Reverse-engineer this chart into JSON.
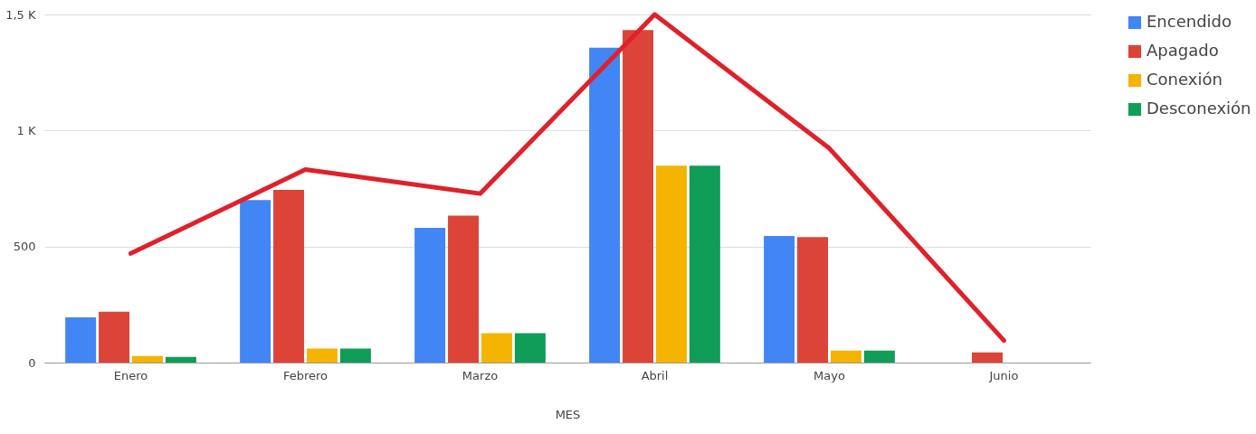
{
  "chart_data": {
    "type": "bar",
    "xlabel": "MES",
    "categories": [
      "Enero",
      "Febrero",
      "Marzo",
      "Abril",
      "Mayo",
      "Junio"
    ],
    "series": [
      {
        "name": "Encendido",
        "color": "#4285f4",
        "values": [
          195,
          700,
          581,
          1357,
          545,
          0
        ]
      },
      {
        "name": "Apagado",
        "color": "#db4437",
        "values": [
          219,
          744,
          633,
          1433,
          541,
          44
        ]
      },
      {
        "name": "Conexión",
        "color": "#f4b400",
        "values": [
          28,
          60,
          127,
          848,
          52,
          0
        ]
      },
      {
        "name": "Desconexión",
        "color": "#0f9d58",
        "values": [
          24,
          60,
          127,
          848,
          52,
          0
        ]
      },
      {
        "type": "line",
        "color": "#e0202a",
        "values": [
          470,
          832,
          728,
          1500,
          923,
          95
        ]
      }
    ],
    "ylim": [
      0,
      1500
    ],
    "yticks": [
      0,
      500,
      {
        "value": 1000,
        "label": "1 K"
      },
      {
        "value": 1500,
        "label": "1,5 K"
      }
    ],
    "grid": "y",
    "legend": "right"
  }
}
